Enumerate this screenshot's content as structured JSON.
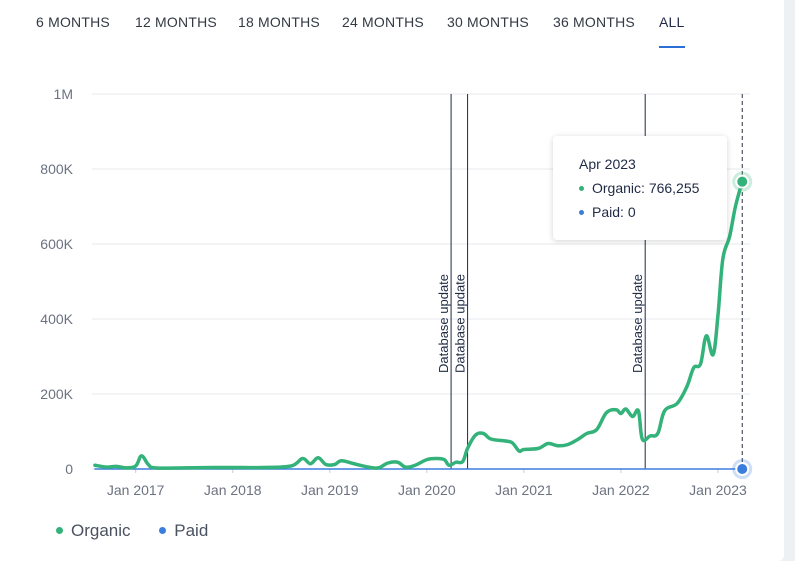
{
  "tabs": [
    "6 MONTHS",
    "12 MONTHS",
    "18 MONTHS",
    "24 MONTHS",
    "30 MONTHS",
    "36 MONTHS",
    "ALL"
  ],
  "active_tab": "ALL",
  "colors": {
    "organic": "#33b27a",
    "paid": "#3b7ddd",
    "grid": "#e6e8ec",
    "axis_text": "#6b7280",
    "annotation": "#1f2a44"
  },
  "tooltip": {
    "title": "Apr 2023",
    "organic_label": "Organic:",
    "organic_value": "766,255",
    "paid_label": "Paid:",
    "paid_value": "0"
  },
  "legend": [
    {
      "label": "Organic",
      "color": "#33b27a"
    },
    {
      "label": "Paid",
      "color": "#3b7ddd"
    }
  ],
  "chart_data": {
    "type": "line",
    "x_ticks": [
      "Jan 2017",
      "Jan 2018",
      "Jan 2019",
      "Jan 2020",
      "Jan 2021",
      "Jan 2022",
      "Jan 2023"
    ],
    "y_ticks": [
      "0",
      "200K",
      "400K",
      "600K",
      "800K",
      "1M"
    ],
    "ylim": [
      0,
      1000000
    ],
    "xlim": [
      2016.55,
      2023.33
    ],
    "grid": true,
    "legend_position": "bottom-left",
    "annotations": [
      {
        "x": 2020.25,
        "label": "Database update"
      },
      {
        "x": 2020.42,
        "label": "Database update"
      },
      {
        "x": 2022.25,
        "label": "Database update"
      }
    ],
    "hover_x": 2023.25,
    "series": [
      {
        "name": "Organic",
        "points": [
          [
            2016.58,
            10000
          ],
          [
            2016.7,
            5000
          ],
          [
            2016.8,
            7000
          ],
          [
            2016.9,
            3000
          ],
          [
            2017.0,
            8000
          ],
          [
            2017.06,
            35000
          ],
          [
            2017.13,
            12000
          ],
          [
            2017.2,
            3000
          ],
          [
            2017.5,
            3000
          ],
          [
            2017.8,
            4000
          ],
          [
            2018.0,
            4000
          ],
          [
            2018.3,
            4000
          ],
          [
            2018.6,
            8000
          ],
          [
            2018.72,
            28000
          ],
          [
            2018.8,
            14000
          ],
          [
            2018.88,
            30000
          ],
          [
            2018.96,
            12000
          ],
          [
            2019.05,
            12000
          ],
          [
            2019.12,
            22000
          ],
          [
            2019.25,
            14000
          ],
          [
            2019.4,
            5000
          ],
          [
            2019.5,
            3000
          ],
          [
            2019.6,
            16000
          ],
          [
            2019.7,
            18000
          ],
          [
            2019.78,
            5000
          ],
          [
            2019.88,
            10000
          ],
          [
            2020.0,
            25000
          ],
          [
            2020.1,
            28000
          ],
          [
            2020.18,
            25000
          ],
          [
            2020.23,
            10000
          ],
          [
            2020.3,
            18000
          ],
          [
            2020.37,
            20000
          ],
          [
            2020.42,
            55000
          ],
          [
            2020.5,
            90000
          ],
          [
            2020.58,
            95000
          ],
          [
            2020.66,
            80000
          ],
          [
            2020.8,
            75000
          ],
          [
            2020.88,
            70000
          ],
          [
            2020.95,
            48000
          ],
          [
            2021.0,
            52000
          ],
          [
            2021.15,
            55000
          ],
          [
            2021.25,
            68000
          ],
          [
            2021.35,
            62000
          ],
          [
            2021.45,
            65000
          ],
          [
            2021.55,
            78000
          ],
          [
            2021.65,
            95000
          ],
          [
            2021.75,
            105000
          ],
          [
            2021.85,
            150000
          ],
          [
            2021.95,
            158000
          ],
          [
            2022.0,
            148000
          ],
          [
            2022.05,
            160000
          ],
          [
            2022.12,
            140000
          ],
          [
            2022.18,
            155000
          ],
          [
            2022.22,
            80000
          ],
          [
            2022.3,
            88000
          ],
          [
            2022.38,
            95000
          ],
          [
            2022.45,
            155000
          ],
          [
            2022.58,
            175000
          ],
          [
            2022.68,
            220000
          ],
          [
            2022.75,
            270000
          ],
          [
            2022.82,
            280000
          ],
          [
            2022.88,
            355000
          ],
          [
            2022.95,
            305000
          ],
          [
            2023.0,
            410000
          ],
          [
            2023.05,
            560000
          ],
          [
            2023.12,
            620000
          ],
          [
            2023.18,
            700000
          ],
          [
            2023.25,
            766255
          ]
        ]
      },
      {
        "name": "Paid",
        "points": [
          [
            2016.58,
            0
          ],
          [
            2023.25,
            0
          ]
        ]
      }
    ]
  }
}
